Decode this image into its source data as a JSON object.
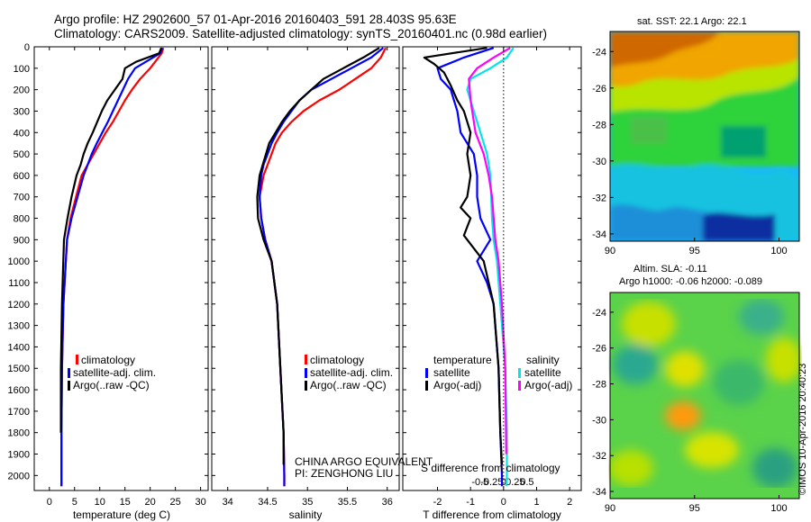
{
  "titles": {
    "line1": "Argo profile: HZ 2902600_57 01-Apr-2016 20160403_591 28.403S 95.63E",
    "line2": "Climatology: CARS2009. Satellite-adjusted climatology: synTS_20160401.nc (0.98d earlier)"
  },
  "side": {
    "sst_title": "sat. SST: 22.1 Argo: 22.1",
    "sla_title1": "Altim. SLA: -0.11",
    "sla_title2": "Argo h1000: -0.06 h2000: -0.089",
    "imos": "©IMOS 10-Apr-2016 20:40:23"
  },
  "colors": {
    "climatology": "#ff0000",
    "satellite": "#0000ff",
    "argo": "#000000",
    "sal_satellite": "#00e5e5",
    "sal_argo": "#ff00ff"
  },
  "depth_ticks": [
    "0",
    "100",
    "200",
    "300",
    "400",
    "500",
    "600",
    "700",
    "800",
    "900",
    "1000",
    "1100",
    "1200",
    "1300",
    "1400",
    "1500",
    "1600",
    "1700",
    "1800",
    "1900",
    "2000"
  ],
  "temperature_panel": {
    "xlabel": "temperature (deg C)",
    "xticks": [
      "0",
      "5",
      "10",
      "15",
      "20",
      "25",
      "30"
    ],
    "legend": [
      "climatology",
      "satellite-adj. clim.",
      "Argo(..raw -QC)"
    ]
  },
  "salinity_panel": {
    "xlabel": "salinity",
    "xticks": [
      "34",
      "34.5",
      "35",
      "35.5",
      "36"
    ],
    "legend": [
      "climatology",
      "satellite-adj. clim.",
      "Argo(..raw -QC)"
    ],
    "note1": "CHINA ARGO EQUIVALENT",
    "note2": "PI: ZENGHONG LIU"
  },
  "difference_panel": {
    "xlabel": "T difference from climatology",
    "top_label": "S difference from climatology",
    "s_ticks": [
      "-0.5",
      "-0.25",
      "0",
      "0.25",
      "0.5"
    ],
    "t_ticks": [
      "-2",
      "-1",
      "0",
      "1",
      "2"
    ],
    "legend_temp_title": "temperature",
    "legend_sal_title": "salinity",
    "legend_satellite": "satellite",
    "legend_argo": "Argo(-adj)"
  },
  "map_axes": {
    "lat_ticks": [
      "-24",
      "-26",
      "-28",
      "-30",
      "-32",
      "-34"
    ],
    "lon_ticks": [
      "90",
      "95",
      "100"
    ]
  },
  "chart_data": [
    {
      "type": "line",
      "title": "",
      "xlabel": "temperature (deg C)",
      "ylabel": "",
      "xlim": [
        -3,
        31.5
      ],
      "ylim": [
        2070,
        0
      ],
      "series": [
        {
          "name": "climatology",
          "x": [
            22.6,
            22.3,
            20,
            18,
            16.4,
            15,
            13.8,
            12.6,
            11.2,
            10,
            8.8,
            7.6,
            6.4,
            5.3,
            4.2,
            3.5,
            2.8,
            2.5,
            2.4,
            2.4
          ],
          "y": [
            5,
            30,
            100,
            150,
            200,
            250,
            300,
            350,
            400,
            450,
            500,
            550,
            600,
            700,
            800,
            900,
            1200,
            1500,
            1800,
            2050
          ]
        },
        {
          "name": "satellite-adj. clim.",
          "x": [
            22.4,
            22,
            17,
            15.6,
            14.6,
            13.6,
            12.6,
            11.6,
            10.5,
            9.4,
            8.4,
            7.6,
            6.8,
            5.6,
            4.4,
            3.5,
            2.8,
            2.5,
            2.4,
            2.4
          ],
          "y": [
            5,
            30,
            100,
            150,
            200,
            250,
            300,
            350,
            400,
            450,
            500,
            550,
            600,
            700,
            800,
            900,
            1200,
            1500,
            1800,
            2050
          ]
        },
        {
          "name": "Argo(..raw -QC)",
          "x": [
            22.2,
            21.8,
            17.2,
            15,
            14.5,
            13,
            11.5,
            10.4,
            9.5,
            8.6,
            7.6,
            6.8,
            6.2,
            5.4,
            4.4,
            3.6,
            2.9,
            2.5,
            2.3,
            2.3
          ],
          "y": [
            5,
            30,
            70,
            100,
            150,
            200,
            250,
            300,
            350,
            400,
            450,
            500,
            550,
            600,
            700,
            800,
            900,
            1200,
            1500,
            1800
          ]
        }
      ]
    },
    {
      "type": "line",
      "title": "",
      "xlabel": "salinity",
      "ylabel": "",
      "xlim": [
        33.8,
        36.15
      ],
      "ylim": [
        2070,
        0
      ],
      "series": [
        {
          "name": "climatology",
          "x": [
            35.98,
            35.92,
            35.8,
            35.6,
            35.4,
            35.15,
            34.95,
            34.8,
            34.68,
            34.6,
            34.55,
            34.5,
            34.45,
            34.4,
            34.42,
            34.47,
            34.55,
            34.62,
            34.66,
            34.7,
            34.71,
            34.71
          ],
          "y": [
            5,
            50,
            100,
            150,
            200,
            250,
            300,
            350,
            400,
            450,
            500,
            550,
            600,
            700,
            800,
            900,
            1000,
            1200,
            1500,
            1800,
            2000,
            2050
          ]
        },
        {
          "name": "satellite-adj. clim.",
          "x": [
            35.95,
            35.8,
            35.55,
            35.3,
            35.05,
            34.9,
            34.8,
            34.7,
            34.62,
            34.55,
            34.5,
            34.45,
            34.42,
            34.4,
            34.42,
            34.47,
            34.55,
            34.62,
            34.66,
            34.7,
            34.71,
            34.71
          ],
          "y": [
            5,
            50,
            100,
            150,
            200,
            250,
            300,
            350,
            400,
            450,
            500,
            550,
            600,
            700,
            800,
            900,
            1000,
            1200,
            1500,
            1800,
            2000,
            2050
          ]
        },
        {
          "name": "Argo(..raw -QC)",
          "x": [
            35.9,
            35.7,
            35.45,
            35.2,
            35.05,
            34.9,
            34.78,
            34.68,
            34.6,
            34.52,
            34.48,
            34.44,
            34.4,
            34.37,
            34.38,
            34.45,
            34.55,
            34.62,
            34.66,
            34.7,
            34.7,
            34.7
          ],
          "y": [
            5,
            50,
            100,
            150,
            200,
            250,
            300,
            350,
            400,
            450,
            500,
            550,
            600,
            700,
            800,
            900,
            1000,
            1200,
            1500,
            1800,
            1900,
            1950
          ]
        }
      ]
    },
    {
      "type": "line",
      "title": "",
      "xlabel": "T difference from climatology",
      "ylabel": "",
      "xlim": [
        -3.05,
        2.35
      ],
      "ylim": [
        2070,
        0
      ],
      "series": [
        {
          "name": "temperature satellite",
          "x": [
            -0.3,
            -1.2,
            -2,
            -1.9,
            -1.6,
            -1.5,
            -1.4,
            -1.3,
            -1.1,
            -0.9,
            -0.8,
            -0.8,
            -0.7,
            -0.4,
            -0.8,
            -0.5,
            -0.3,
            -0.15,
            -0.1,
            -0.05,
            -0.05
          ],
          "y": [
            5,
            50,
            100,
            150,
            200,
            250,
            300,
            400,
            450,
            500,
            600,
            700,
            800,
            900,
            1000,
            1100,
            1200,
            1500,
            1800,
            2000,
            2050
          ]
        },
        {
          "name": "temperature Argo(-adj)",
          "x": [
            -0.5,
            -2.4,
            -2.1,
            -1.8,
            -1.6,
            -1.4,
            -1.2,
            -1,
            -1.1,
            -1,
            -1.1,
            -1.3,
            -1,
            -1.2,
            -0.6,
            -0.3,
            -0.15,
            -0.1,
            -0.05
          ],
          "y": [
            5,
            50,
            80,
            120,
            180,
            250,
            300,
            400,
            500,
            600,
            700,
            750,
            800,
            880,
            1000,
            1200,
            1500,
            1800,
            1950
          ]
        },
        {
          "name": "salinity satellite",
          "x": [
            0.3,
            0.1,
            -0.4,
            -1,
            -1.1,
            -0.9,
            -0.7,
            -0.5,
            -0.4,
            -0.35,
            -0.3,
            -0.2,
            -0.1,
            0.05,
            0.1,
            0.1,
            0.08
          ],
          "y": [
            5,
            50,
            100,
            150,
            200,
            300,
            400,
            500,
            600,
            800,
            900,
            1000,
            1200,
            1500,
            1800,
            2000,
            2050
          ]
        },
        {
          "name": "salinity Argo(-adj)",
          "x": [
            0.2,
            -0.3,
            -0.8,
            -1.05,
            -1,
            -0.85,
            -0.6,
            -0.45,
            -0.35,
            -0.25,
            -0.15,
            -0.05,
            0.05,
            0.08
          ],
          "y": [
            5,
            50,
            100,
            150,
            250,
            400,
            500,
            600,
            700,
            900,
            1000,
            1200,
            1500,
            1900
          ]
        }
      ]
    },
    {
      "type": "heatmap",
      "title": "sat. SST: 22.1 Argo: 22.1",
      "xlabel": "",
      "ylabel": "",
      "xlim": [
        90,
        101.2
      ],
      "ylim": [
        -34.4,
        -22.9
      ]
    },
    {
      "type": "heatmap",
      "title": "Altim. SLA: -0.11",
      "xlabel": "",
      "ylabel": "",
      "xlim": [
        90,
        101.2
      ],
      "ylim": [
        -34.4,
        -22.9
      ]
    }
  ]
}
